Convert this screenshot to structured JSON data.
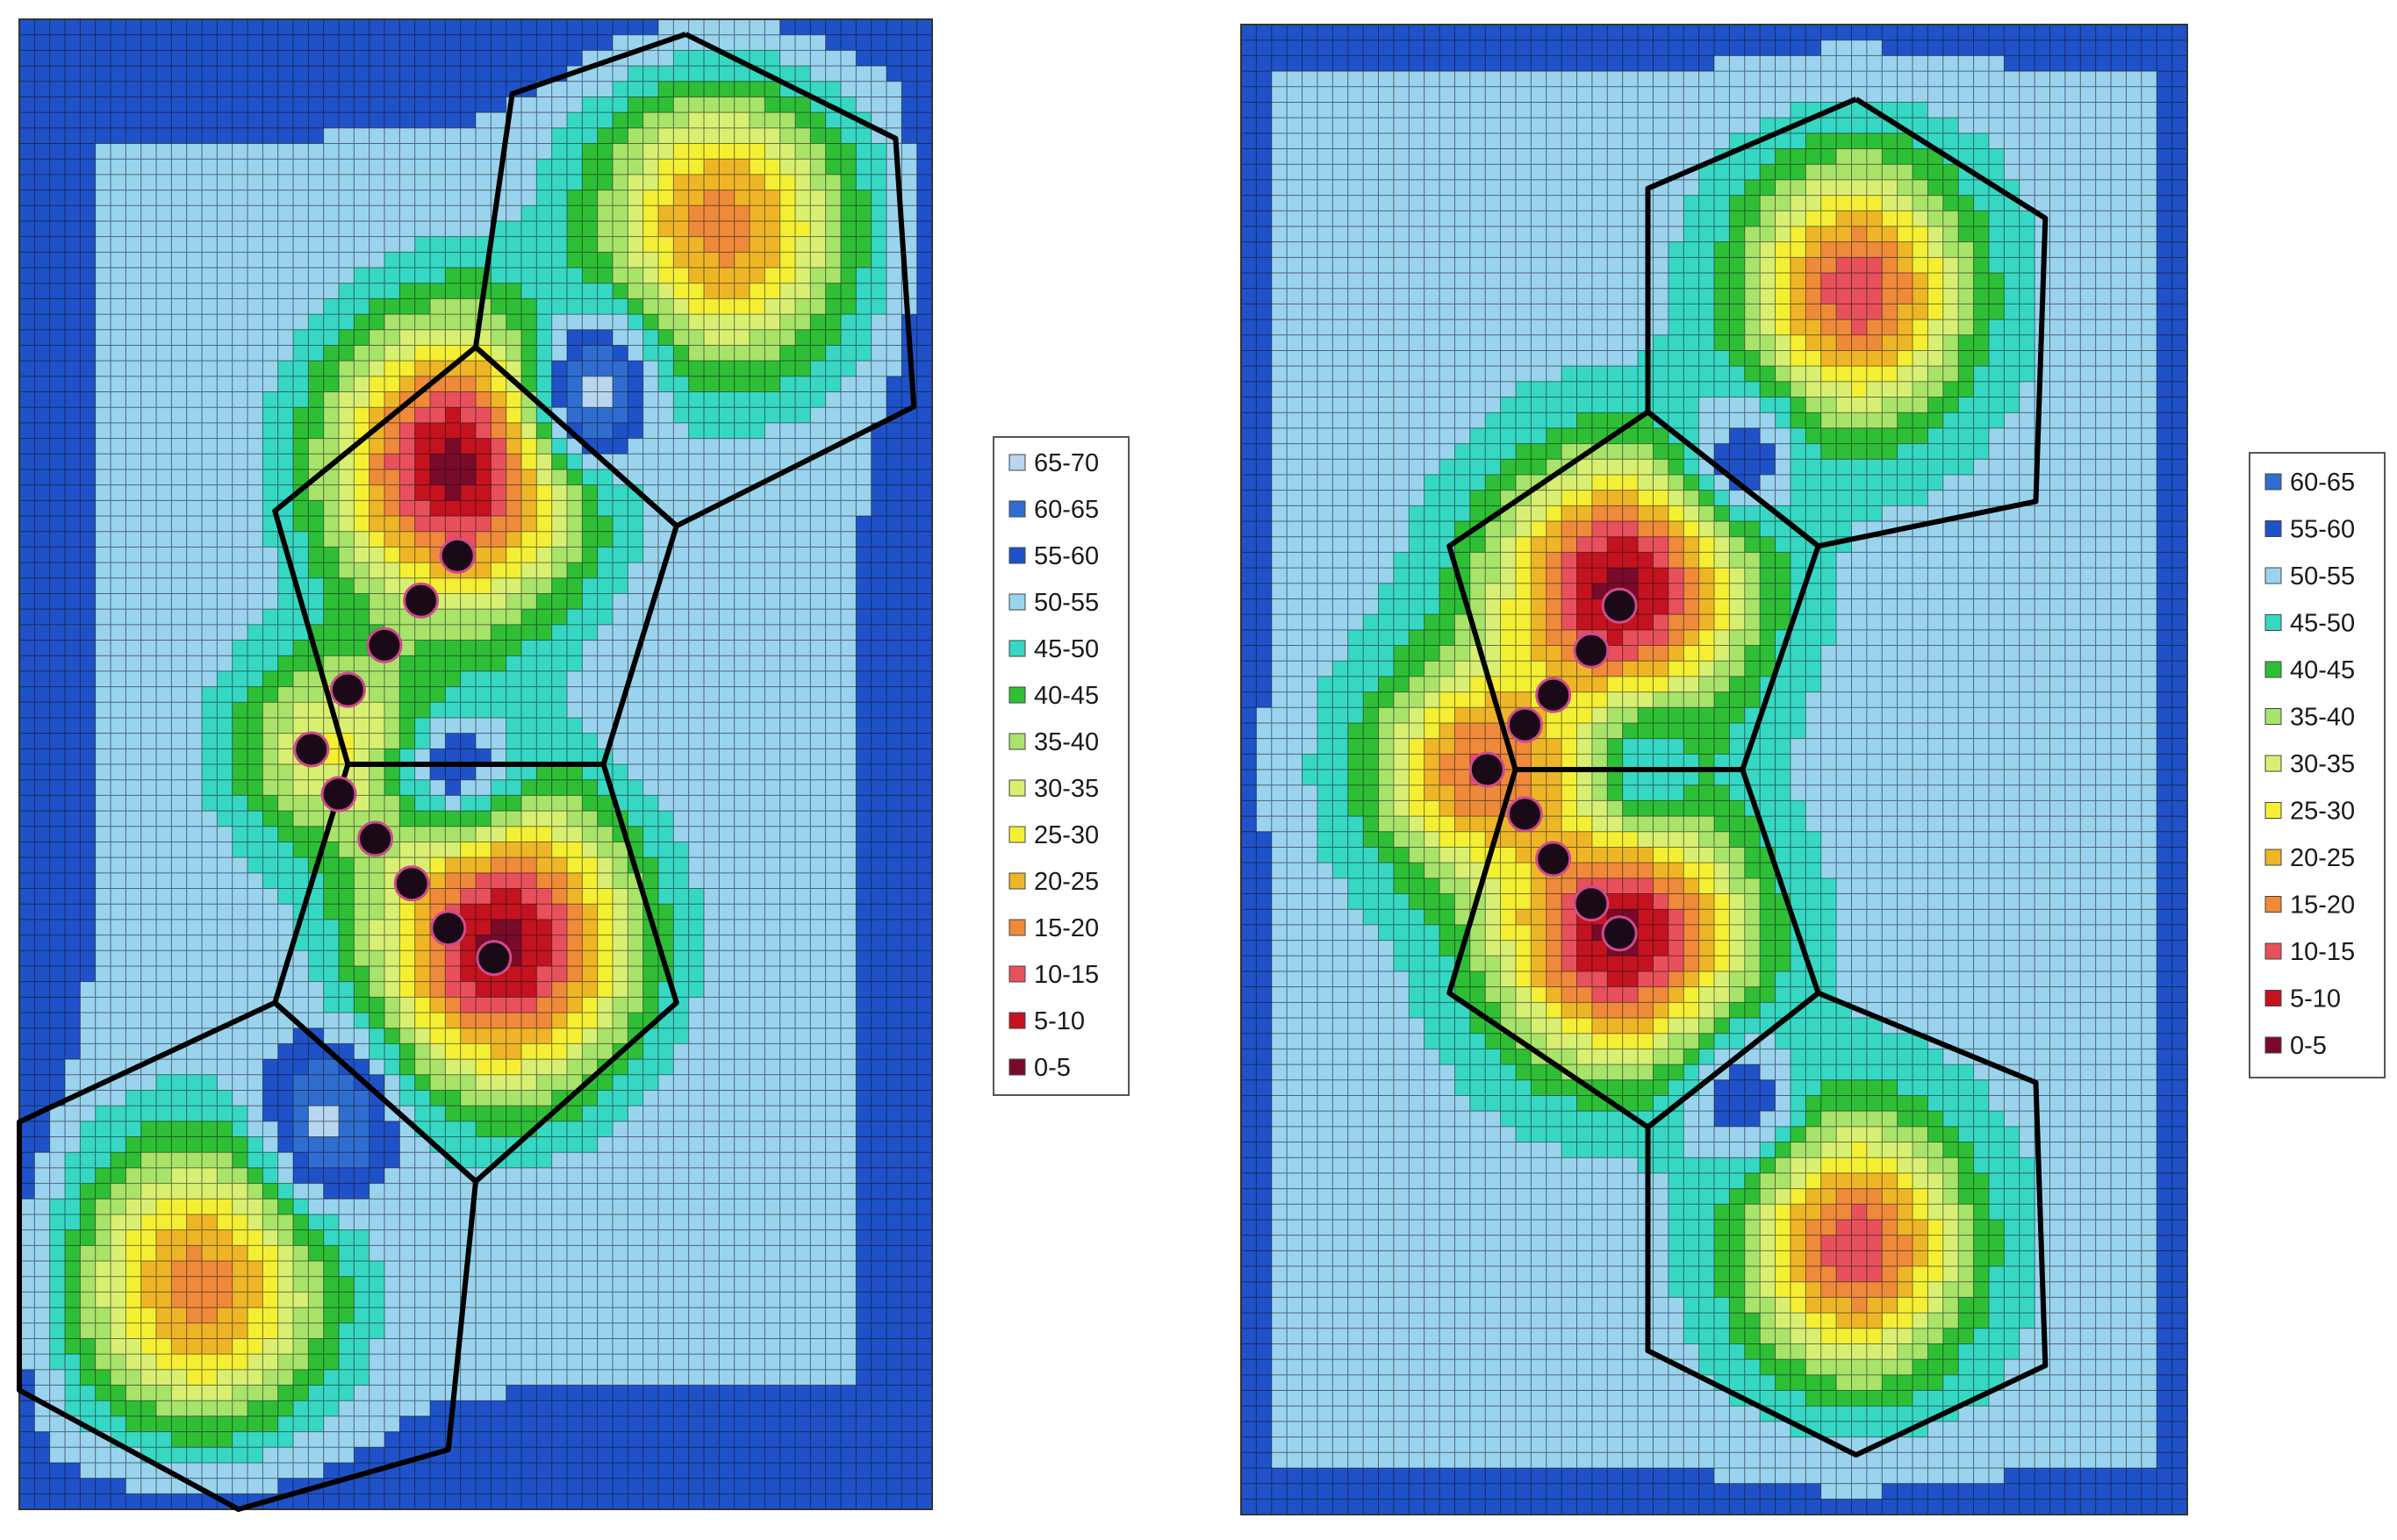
{
  "colors": {
    "bins": [
      "#7a0a2a",
      "#c4121f",
      "#e8505c",
      "#ee8a3a",
      "#eeb627",
      "#f4ef32",
      "#d8ef72",
      "#a8e36a",
      "#2ebf36",
      "#36d8c4",
      "#9ad3ee",
      "#1f52c8",
      "#2f6ed0",
      "#b8d6f0"
    ],
    "mesh_line": "#101010",
    "skeleton": "#000000",
    "atom_fill": "#1a0a18",
    "atom_ring": "#d04a8c"
  },
  "chart_data": [
    {
      "type": "heatmap",
      "name": "left-panel",
      "legend": [
        "65-70",
        "60-65",
        "55-60",
        "50-55",
        "45-50",
        "40-45",
        "35-40",
        "30-35",
        "25-30",
        "20-25",
        "15-20",
        "10-15",
        "5-10",
        "0-5"
      ],
      "bin_values": [
        67.5,
        62.5,
        57.5,
        52.5,
        47.5,
        42.5,
        37.5,
        32.5,
        27.5,
        22.5,
        17.5,
        12.5,
        7.5,
        2.5
      ],
      "zlim": [
        0,
        70
      ],
      "background_value": 55,
      "wells": [
        {
          "x": 0.48,
          "y": 0.3,
          "value": 3,
          "sx": 0.1,
          "sy": 0.07
        },
        {
          "x": 0.53,
          "y": 0.62,
          "value": 3,
          "sx": 0.1,
          "sy": 0.07
        },
        {
          "x": 0.36,
          "y": 0.49,
          "value": 28,
          "sx": 0.09,
          "sy": 0.05
        },
        {
          "x": 0.77,
          "y": 0.14,
          "value": 18,
          "sx": 0.1,
          "sy": 0.07
        },
        {
          "x": 0.2,
          "y": 0.85,
          "value": 18,
          "sx": 0.1,
          "sy": 0.07
        }
      ],
      "holes": [
        {
          "x": 0.63,
          "y": 0.25,
          "value": 66,
          "sx": 0.05,
          "sy": 0.04
        },
        {
          "x": 0.34,
          "y": 0.74,
          "value": 66,
          "sx": 0.05,
          "sy": 0.04
        },
        {
          "x": 0.48,
          "y": 0.5,
          "value": 58,
          "sx": 0.05,
          "sy": 0.03
        }
      ],
      "skeleton": [
        [
          [
            0.73,
            0.01
          ],
          [
            0.96,
            0.08
          ],
          [
            0.98,
            0.26
          ],
          [
            0.72,
            0.34
          ],
          [
            0.5,
            0.22
          ],
          [
            0.54,
            0.05
          ],
          [
            0.73,
            0.01
          ]
        ],
        [
          [
            0.5,
            0.22
          ],
          [
            0.72,
            0.34
          ],
          [
            0.64,
            0.5
          ],
          [
            0.36,
            0.5
          ],
          [
            0.28,
            0.33
          ],
          [
            0.5,
            0.22
          ]
        ],
        [
          [
            0.36,
            0.5
          ],
          [
            0.64,
            0.5
          ],
          [
            0.72,
            0.66
          ],
          [
            0.5,
            0.78
          ],
          [
            0.28,
            0.66
          ],
          [
            0.36,
            0.5
          ]
        ],
        [
          [
            0.28,
            0.66
          ],
          [
            0.5,
            0.78
          ],
          [
            0.47,
            0.96
          ],
          [
            0.24,
            1.0
          ],
          [
            0.0,
            0.92
          ],
          [
            0.0,
            0.74
          ],
          [
            0.28,
            0.66
          ]
        ]
      ],
      "atoms": [
        [
          0.48,
          0.36
        ],
        [
          0.44,
          0.39
        ],
        [
          0.4,
          0.42
        ],
        [
          0.36,
          0.45
        ],
        [
          0.32,
          0.49
        ],
        [
          0.35,
          0.52
        ],
        [
          0.39,
          0.55
        ],
        [
          0.43,
          0.58
        ],
        [
          0.47,
          0.61
        ],
        [
          0.52,
          0.63
        ]
      ]
    },
    {
      "type": "heatmap",
      "name": "right-panel",
      "legend": [
        "60-65",
        "55-60",
        "50-55",
        "45-50",
        "40-45",
        "35-40",
        "30-35",
        "25-30",
        "20-25",
        "15-20",
        "10-15",
        "5-10",
        "0-5"
      ],
      "bin_values": [
        62.5,
        57.5,
        52.5,
        47.5,
        42.5,
        37.5,
        32.5,
        27.5,
        22.5,
        17.5,
        12.5,
        7.5,
        2.5
      ],
      "zlim": [
        0,
        65
      ],
      "background_value": 52,
      "wells": [
        {
          "x": 0.4,
          "y": 0.38,
          "value": 3,
          "sx": 0.09,
          "sy": 0.06
        },
        {
          "x": 0.4,
          "y": 0.61,
          "value": 3,
          "sx": 0.09,
          "sy": 0.06
        },
        {
          "x": 0.26,
          "y": 0.5,
          "value": 14,
          "sx": 0.08,
          "sy": 0.05
        },
        {
          "x": 0.65,
          "y": 0.18,
          "value": 12,
          "sx": 0.08,
          "sy": 0.06
        },
        {
          "x": 0.65,
          "y": 0.82,
          "value": 12,
          "sx": 0.08,
          "sy": 0.06
        }
      ],
      "holes": [
        {
          "x": 0.53,
          "y": 0.29,
          "value": 58,
          "sx": 0.04,
          "sy": 0.03
        },
        {
          "x": 0.53,
          "y": 0.72,
          "value": 58,
          "sx": 0.04,
          "sy": 0.03
        },
        {
          "x": 0.43,
          "y": 0.5,
          "value": 50,
          "sx": 0.04,
          "sy": 0.03
        }
      ],
      "skeleton": [
        [
          [
            0.65,
            0.05
          ],
          [
            0.85,
            0.13
          ],
          [
            0.84,
            0.32
          ],
          [
            0.61,
            0.35
          ],
          [
            0.43,
            0.26
          ],
          [
            0.43,
            0.11
          ],
          [
            0.65,
            0.05
          ]
        ],
        [
          [
            0.43,
            0.26
          ],
          [
            0.61,
            0.35
          ],
          [
            0.53,
            0.5
          ],
          [
            0.29,
            0.5
          ],
          [
            0.22,
            0.35
          ],
          [
            0.43,
            0.26
          ]
        ],
        [
          [
            0.29,
            0.5
          ],
          [
            0.53,
            0.5
          ],
          [
            0.61,
            0.65
          ],
          [
            0.43,
            0.74
          ],
          [
            0.22,
            0.65
          ],
          [
            0.29,
            0.5
          ]
        ],
        [
          [
            0.43,
            0.74
          ],
          [
            0.61,
            0.65
          ],
          [
            0.84,
            0.71
          ],
          [
            0.85,
            0.9
          ],
          [
            0.65,
            0.96
          ],
          [
            0.43,
            0.89
          ],
          [
            0.43,
            0.74
          ]
        ]
      ],
      "atoms": [
        [
          0.4,
          0.39
        ],
        [
          0.37,
          0.42
        ],
        [
          0.33,
          0.45
        ],
        [
          0.3,
          0.47
        ],
        [
          0.26,
          0.5
        ],
        [
          0.3,
          0.53
        ],
        [
          0.33,
          0.56
        ],
        [
          0.37,
          0.59
        ],
        [
          0.4,
          0.61
        ]
      ]
    }
  ]
}
